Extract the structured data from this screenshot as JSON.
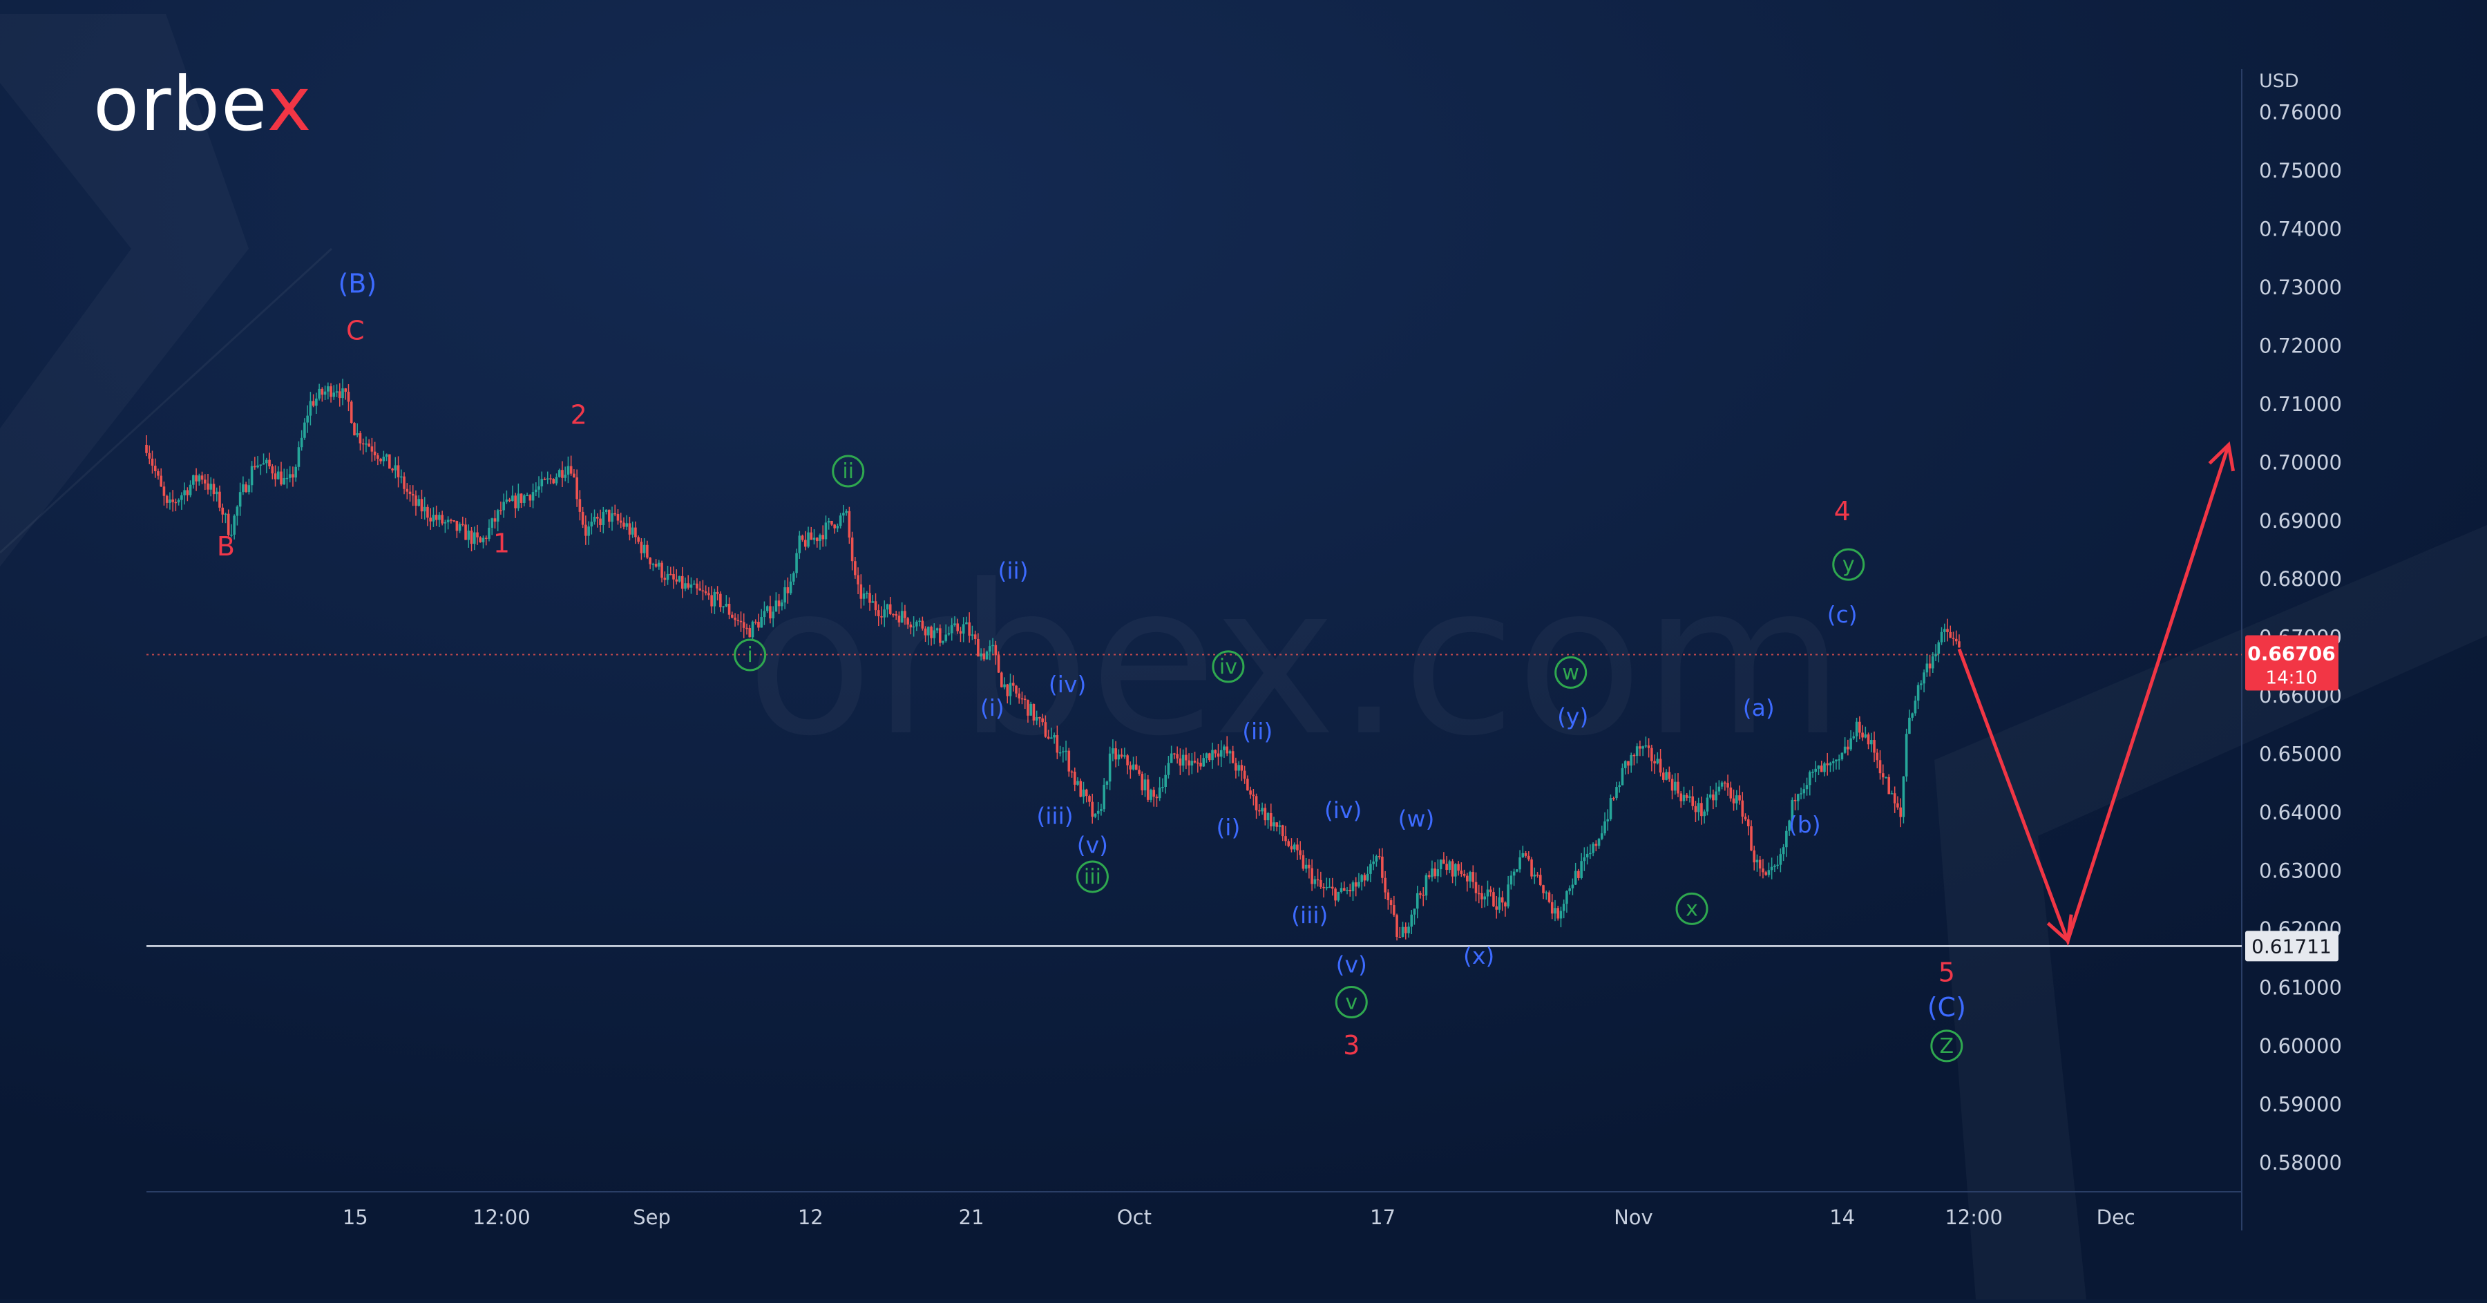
{
  "brand": {
    "logo_text_main": "orbe",
    "logo_text_accent": "x",
    "watermark": "orbex.com"
  },
  "colors": {
    "background": "#0b1c3a",
    "candle_up": "#26a69a",
    "candle_down": "#ef5350",
    "wave_red": "#f0384a",
    "wave_blue": "#3d6bff",
    "wave_green": "#2fa84f",
    "projection": "#f23645",
    "axis_text": "#c9d1e0",
    "price_badge": "#f23645"
  },
  "chart_data": {
    "type": "candlestick",
    "currency": "USD",
    "ylim": [
      0.575,
      0.768
    ],
    "y_ticks": [
      "0.76000",
      "0.75000",
      "0.74000",
      "0.73000",
      "0.72000",
      "0.71000",
      "0.70000",
      "0.69000",
      "0.68000",
      "0.67000",
      "0.66000",
      "0.65000",
      "0.64000",
      "0.63000",
      "0.62000",
      "0.61000",
      "0.60000",
      "0.59000",
      "0.58000"
    ],
    "x_ticks": [
      {
        "label": "15",
        "t": 0.1
      },
      {
        "label": "12:00",
        "t": 0.17
      },
      {
        "label": "Sep",
        "t": 0.242
      },
      {
        "label": "12",
        "t": 0.318
      },
      {
        "label": "21",
        "t": 0.395
      },
      {
        "label": "Oct",
        "t": 0.473
      },
      {
        "label": "17",
        "t": 0.592
      },
      {
        "label": "Nov",
        "t": 0.712
      },
      {
        "label": "14",
        "t": 0.812
      },
      {
        "label": "12:00",
        "t": 0.875
      },
      {
        "label": "Dec",
        "t": 0.943
      }
    ],
    "current_price": {
      "value": "0.66706",
      "countdown": "14:10"
    },
    "support_level": {
      "value": "0.61711"
    },
    "price_path": [
      [
        0.0,
        0.703
      ],
      [
        0.01,
        0.692
      ],
      [
        0.018,
        0.695
      ],
      [
        0.026,
        0.698
      ],
      [
        0.035,
        0.693
      ],
      [
        0.04,
        0.688
      ],
      [
        0.045,
        0.694
      ],
      [
        0.052,
        0.7
      ],
      [
        0.06,
        0.699
      ],
      [
        0.068,
        0.696
      ],
      [
        0.072,
        0.7
      ],
      [
        0.078,
        0.71
      ],
      [
        0.085,
        0.712
      ],
      [
        0.091,
        0.713
      ],
      [
        0.097,
        0.71
      ],
      [
        0.1,
        0.705
      ],
      [
        0.11,
        0.702
      ],
      [
        0.12,
        0.698
      ],
      [
        0.128,
        0.693
      ],
      [
        0.14,
        0.69
      ],
      [
        0.152,
        0.688
      ],
      [
        0.16,
        0.686
      ],
      [
        0.17,
        0.692
      ],
      [
        0.18,
        0.694
      ],
      [
        0.19,
        0.696
      ],
      [
        0.2,
        0.699
      ],
      [
        0.203,
        0.7
      ],
      [
        0.21,
        0.688
      ],
      [
        0.22,
        0.691
      ],
      [
        0.23,
        0.689
      ],
      [
        0.24,
        0.684
      ],
      [
        0.25,
        0.68
      ],
      [
        0.262,
        0.678
      ],
      [
        0.275,
        0.676
      ],
      [
        0.288,
        0.671
      ],
      [
        0.3,
        0.675
      ],
      [
        0.31,
        0.68
      ],
      [
        0.312,
        0.686
      ],
      [
        0.32,
        0.687
      ],
      [
        0.33,
        0.69
      ],
      [
        0.335,
        0.691
      ],
      [
        0.34,
        0.678
      ],
      [
        0.35,
        0.675
      ],
      [
        0.36,
        0.674
      ],
      [
        0.372,
        0.672
      ],
      [
        0.38,
        0.67
      ],
      [
        0.392,
        0.672
      ],
      [
        0.4,
        0.667
      ],
      [
        0.405,
        0.668
      ],
      [
        0.41,
        0.662
      ],
      [
        0.42,
        0.659
      ],
      [
        0.43,
        0.654
      ],
      [
        0.44,
        0.65
      ],
      [
        0.445,
        0.645
      ],
      [
        0.45,
        0.642
      ],
      [
        0.455,
        0.638
      ],
      [
        0.462,
        0.65
      ],
      [
        0.472,
        0.648
      ],
      [
        0.482,
        0.642
      ],
      [
        0.492,
        0.65
      ],
      [
        0.502,
        0.648
      ],
      [
        0.512,
        0.651
      ],
      [
        0.518,
        0.65
      ],
      [
        0.525,
        0.646
      ],
      [
        0.53,
        0.642
      ],
      [
        0.54,
        0.638
      ],
      [
        0.552,
        0.632
      ],
      [
        0.562,
        0.627
      ],
      [
        0.572,
        0.626
      ],
      [
        0.582,
        0.628
      ],
      [
        0.59,
        0.632
      ],
      [
        0.595,
        0.624
      ],
      [
        0.6,
        0.618
      ],
      [
        0.608,
        0.625
      ],
      [
        0.618,
        0.631
      ],
      [
        0.63,
        0.63
      ],
      [
        0.64,
        0.626
      ],
      [
        0.65,
        0.624
      ],
      [
        0.658,
        0.633
      ],
      [
        0.668,
        0.628
      ],
      [
        0.675,
        0.622
      ],
      [
        0.682,
        0.628
      ],
      [
        0.692,
        0.633
      ],
      [
        0.7,
        0.64
      ],
      [
        0.708,
        0.648
      ],
      [
        0.715,
        0.651
      ],
      [
        0.722,
        0.649
      ],
      [
        0.735,
        0.643
      ],
      [
        0.745,
        0.64
      ],
      [
        0.755,
        0.645
      ],
      [
        0.765,
        0.64
      ],
      [
        0.77,
        0.632
      ],
      [
        0.775,
        0.628
      ],
      [
        0.782,
        0.631
      ],
      [
        0.79,
        0.644
      ],
      [
        0.8,
        0.647
      ],
      [
        0.81,
        0.648
      ],
      [
        0.82,
        0.655
      ],
      [
        0.828,
        0.65
      ],
      [
        0.835,
        0.643
      ],
      [
        0.84,
        0.639
      ],
      [
        0.843,
        0.655
      ],
      [
        0.85,
        0.663
      ],
      [
        0.858,
        0.669
      ],
      [
        0.862,
        0.671
      ],
      [
        0.868,
        0.668
      ]
    ],
    "projection": [
      {
        "t": 0.868,
        "v": 0.668
      },
      {
        "t": 0.92,
        "v": 0.618
      },
      {
        "t": 0.997,
        "v": 0.703
      }
    ],
    "wave_labels": [
      {
        "text": "(B)",
        "t": 0.101,
        "v": 0.7305,
        "color": "blue",
        "circled": false
      },
      {
        "text": "C",
        "t": 0.1,
        "v": 0.7225,
        "color": "red",
        "circled": false
      },
      {
        "text": "B",
        "t": 0.038,
        "v": 0.6855,
        "color": "red",
        "circled": false
      },
      {
        "text": "2",
        "t": 0.207,
        "v": 0.708,
        "color": "red",
        "circled": false
      },
      {
        "text": "1",
        "t": 0.17,
        "v": 0.686,
        "color": "red",
        "circled": false
      },
      {
        "text": "i",
        "t": 0.289,
        "v": 0.667,
        "color": "green",
        "circled": true
      },
      {
        "text": "ii",
        "t": 0.336,
        "v": 0.6985,
        "color": "green",
        "circled": true
      },
      {
        "text": "(ii)",
        "t": 0.415,
        "v": 0.6815,
        "color": "blue",
        "circled": false
      },
      {
        "text": "(i)",
        "t": 0.405,
        "v": 0.658,
        "color": "blue",
        "circled": false
      },
      {
        "text": "(iv)",
        "t": 0.441,
        "v": 0.662,
        "color": "blue",
        "circled": false
      },
      {
        "text": "(iii)",
        "t": 0.435,
        "v": 0.6395,
        "color": "blue",
        "circled": false
      },
      {
        "text": "(v)",
        "t": 0.453,
        "v": 0.6345,
        "color": "blue",
        "circled": false
      },
      {
        "text": "iii",
        "t": 0.453,
        "v": 0.629,
        "color": "green",
        "circled": true
      },
      {
        "text": "iv",
        "t": 0.518,
        "v": 0.665,
        "color": "green",
        "circled": true
      },
      {
        "text": "(ii)",
        "t": 0.532,
        "v": 0.654,
        "color": "blue",
        "circled": false
      },
      {
        "text": "(i)",
        "t": 0.518,
        "v": 0.6375,
        "color": "blue",
        "circled": false
      },
      {
        "text": "(iv)",
        "t": 0.573,
        "v": 0.6405,
        "color": "blue",
        "circled": false
      },
      {
        "text": "(iii)",
        "t": 0.557,
        "v": 0.6225,
        "color": "blue",
        "circled": false
      },
      {
        "text": "(w)",
        "t": 0.608,
        "v": 0.639,
        "color": "blue",
        "circled": false
      },
      {
        "text": "(v)",
        "t": 0.577,
        "v": 0.614,
        "color": "blue",
        "circled": false
      },
      {
        "text": "v",
        "t": 0.577,
        "v": 0.6075,
        "color": "green",
        "circled": true
      },
      {
        "text": "3",
        "t": 0.577,
        "v": 0.6,
        "color": "red",
        "circled": false
      },
      {
        "text": "(x)",
        "t": 0.638,
        "v": 0.6155,
        "color": "blue",
        "circled": false
      },
      {
        "text": "w",
        "t": 0.682,
        "v": 0.664,
        "color": "green",
        "circled": true
      },
      {
        "text": "(y)",
        "t": 0.683,
        "v": 0.6565,
        "color": "blue",
        "circled": false
      },
      {
        "text": "x",
        "t": 0.74,
        "v": 0.6235,
        "color": "green",
        "circled": true
      },
      {
        "text": "(a)",
        "t": 0.772,
        "v": 0.658,
        "color": "blue",
        "circled": false
      },
      {
        "text": "(b)",
        "t": 0.794,
        "v": 0.638,
        "color": "blue",
        "circled": false
      },
      {
        "text": "4",
        "t": 0.812,
        "v": 0.6915,
        "color": "red",
        "circled": false
      },
      {
        "text": "y",
        "t": 0.815,
        "v": 0.6825,
        "color": "green",
        "circled": true
      },
      {
        "text": "(c)",
        "t": 0.812,
        "v": 0.674,
        "color": "blue",
        "circled": false
      },
      {
        "text": "5",
        "t": 0.862,
        "v": 0.6125,
        "color": "red",
        "circled": false
      },
      {
        "text": "(C)",
        "t": 0.862,
        "v": 0.6065,
        "color": "blue",
        "circled": false
      },
      {
        "text": "Z",
        "t": 0.862,
        "v": 0.6,
        "color": "green",
        "circled": true
      }
    ]
  }
}
